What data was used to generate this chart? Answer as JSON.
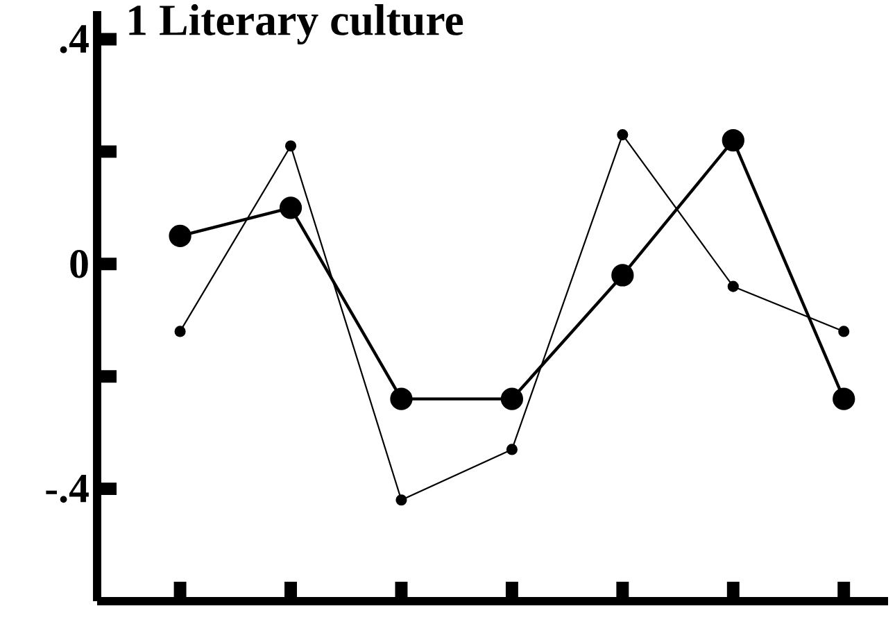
{
  "chart_data": {
    "type": "line",
    "title": "1 Literary culture",
    "categories": [
      null,
      null,
      null,
      null,
      null,
      null,
      null
    ],
    "series": [
      {
        "color": "#000000",
        "values": [
          0.05,
          0.1,
          -0.24,
          -0.24,
          -0.02,
          0.22,
          -0.24
        ]
      },
      {
        "color": "#000000",
        "values": [
          -0.12,
          0.21,
          -0.42,
          -0.33,
          0.23,
          -0.04,
          -0.12
        ]
      }
    ],
    "ylim": [
      -0.6,
      0.45
    ],
    "yticks": [
      {
        "value": 0.4,
        "label": ".4"
      },
      {
        "value": 0.2,
        "label": null
      },
      0,
      {
        "value": -0.2,
        "label": null
      },
      {
        "value": -0.4,
        "label": "-.4"
      }
    ],
    "marker": "circle",
    "line_style": "solid"
  }
}
